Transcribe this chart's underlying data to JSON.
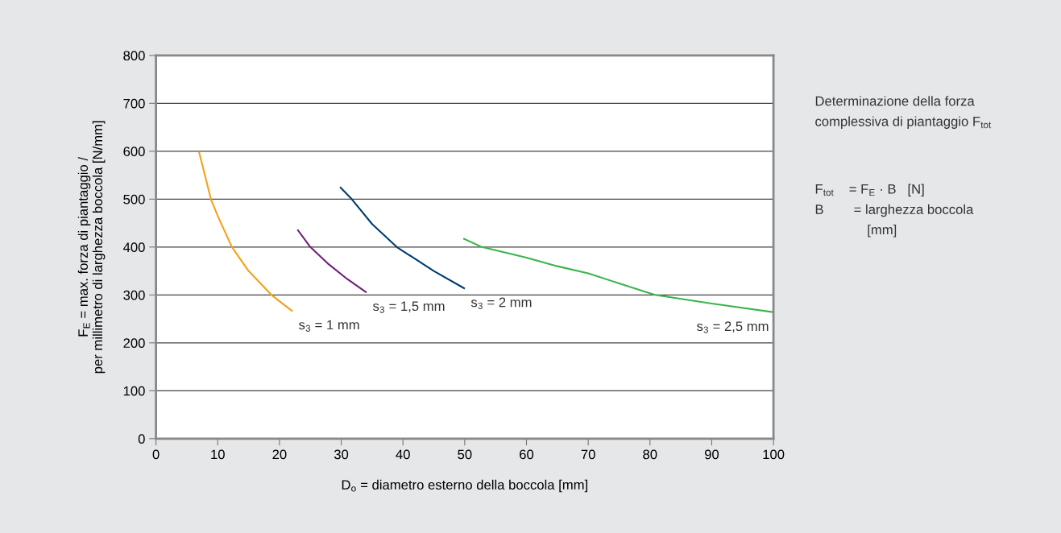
{
  "chart_data": {
    "type": "line",
    "xlabel": "D$_{o}$ = diametro esterno della boccola [mm]",
    "ylabel": "F$_{E}$ = max. forza di piantaggio /\nper millimetro di larghezza boccola [N/mm]",
    "series": [
      {
        "name": "s$_{3}$ = 1 mm",
        "color": "#f6a01a",
        "x": [
          7,
          8.9,
          10,
          12.3,
          15,
          18.7,
          22
        ],
        "values": [
          597,
          500,
          465,
          400,
          350,
          300,
          267
        ]
      },
      {
        "name": "s$_{3}$ = 1,5 mm",
        "color": "#6d2077",
        "x": [
          23,
          25,
          27.8,
          31,
          34
        ],
        "values": [
          435,
          400,
          366,
          333,
          306
        ]
      },
      {
        "name": "s$_{3}$ = 2 mm",
        "color": "#003c6e",
        "x": [
          29.9,
          31.7,
          35,
          39,
          45,
          49.9
        ],
        "values": [
          524,
          500,
          448,
          400,
          350,
          314
        ]
      },
      {
        "name": "s$_{3}$ = 2,5 mm",
        "color": "#3cb44b",
        "x": [
          49.9,
          52.8,
          60,
          65,
          70,
          80.8,
          90,
          100
        ],
        "values": [
          417,
          400,
          378,
          360,
          345,
          300,
          282,
          264
        ]
      }
    ],
    "annotations": [
      "Determinazione della forza\ncomplessiva di piantaggio F$_{tot}$",
      "F$_{tot}$    = F$_{E}$ · B   [N]\nB        = larghezza boccola\n              [mm]"
    ],
    "xlim": [
      0,
      100
    ],
    "xticks": [
      0,
      10,
      20,
      30,
      40,
      50,
      60,
      70,
      80,
      90,
      100
    ],
    "ylim": [
      0,
      800
    ],
    "yticks": [
      0,
      100,
      200,
      300,
      400,
      500,
      600,
      700,
      800
    ],
    "grid": "y",
    "legend": false,
    "marker": "none",
    "line_style": "solid"
  }
}
